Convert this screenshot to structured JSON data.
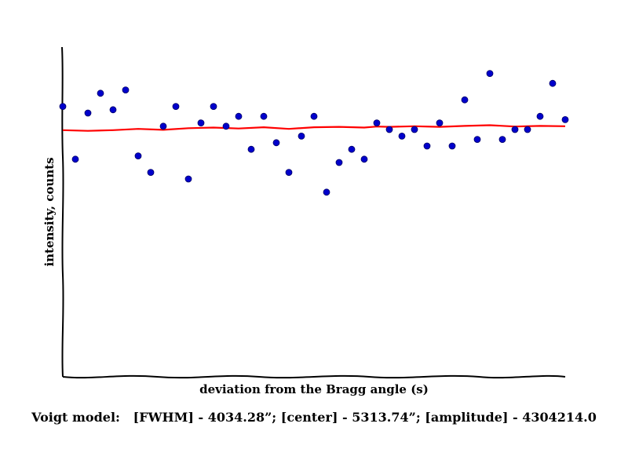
{
  "chart_data": {
    "type": "scatter",
    "xlabel": "deviation from the Bragg angle (s)",
    "ylabel": "intensity, counts",
    "xlim": [
      0,
      40
    ],
    "ylim": [
      0,
      100
    ],
    "grid": false,
    "series": [
      {
        "kind": "points",
        "color": "#0000cc",
        "x": [
          0,
          1,
          2,
          3,
          4,
          5,
          6,
          7,
          8,
          9,
          10,
          11,
          12,
          13,
          14,
          15,
          16,
          17,
          18,
          19,
          20,
          21,
          22,
          23,
          24,
          25,
          26,
          27,
          28,
          29,
          30,
          31,
          32,
          33,
          34,
          35,
          36,
          37,
          38,
          39,
          40
        ],
        "y": [
          82,
          66,
          80,
          86,
          81,
          87,
          67,
          62,
          76,
          82,
          60,
          77,
          82,
          76,
          79,
          69,
          79,
          71,
          62,
          73,
          79,
          56,
          65,
          69,
          66,
          77,
          75,
          73,
          75,
          70,
          77,
          70,
          84,
          72,
          92,
          72,
          75,
          75,
          79,
          89,
          78
        ]
      },
      {
        "kind": "line",
        "color": "#ff0000",
        "x": [
          0,
          2,
          4,
          6,
          8,
          10,
          12,
          14,
          16,
          18,
          20,
          22,
          24,
          25,
          26,
          28,
          30,
          32,
          34,
          36,
          38,
          40
        ],
        "y": [
          74.8,
          74.6,
          74.8,
          75.2,
          74.9,
          75.4,
          75.6,
          75.3,
          75.7,
          75.2,
          75.7,
          75.8,
          75.6,
          75.9,
          75.8,
          76.0,
          75.8,
          76.1,
          76.3,
          75.9,
          76.1,
          76.0
        ]
      }
    ]
  },
  "footer": {
    "model_label": "Voigt model:",
    "params": "[FWHM] - 4034.28”; [center] - 5313.74”; [amplitude] - 4304214.0"
  }
}
